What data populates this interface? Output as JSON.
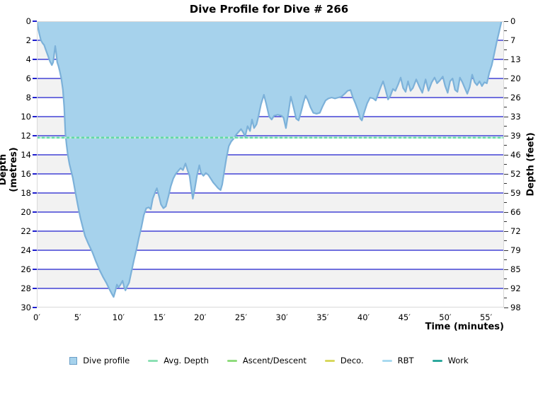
{
  "chart_data": {
    "type": "area",
    "title": "Dive Profile for Dive # 266",
    "xlabel": "Time (minutes)",
    "ylabel_left": "Depth (metres)",
    "ylabel_right": "Depth (feet)",
    "xlim": [
      0,
      57.2
    ],
    "ylim": [
      0,
      30
    ],
    "grid": true,
    "x_ticks": {
      "values": [
        0,
        5,
        10,
        15,
        20,
        25,
        30,
        35,
        40,
        45,
        50,
        55
      ],
      "labels": [
        "0′",
        "5′",
        "10′",
        "15′",
        "20′",
        "25′",
        "30′",
        "35′",
        "40′",
        "45′",
        "50′",
        "55′"
      ]
    },
    "y_ticks_metres": [
      0,
      2,
      4,
      6,
      8,
      10,
      12,
      14,
      16,
      18,
      20,
      22,
      24,
      26,
      28,
      30
    ],
    "y_ticks_feet_labels": [
      "0",
      "7",
      "13",
      "20",
      "26",
      "33",
      "39",
      "46",
      "52",
      "59",
      "66",
      "72",
      "79",
      "85",
      "92",
      "98"
    ],
    "avg_depth_m": 12.2,
    "max_depth_m": 28.9,
    "series": [
      {
        "name": "Dive profile",
        "points": [
          [
            0,
            0
          ],
          [
            0.15,
            0.7
          ],
          [
            0.3,
            1.3
          ],
          [
            0.5,
            2.0
          ],
          [
            0.7,
            2.3
          ],
          [
            0.9,
            2.5
          ],
          [
            1.1,
            3.0
          ],
          [
            1.4,
            3.7
          ],
          [
            1.6,
            4.2
          ],
          [
            1.85,
            4.6
          ],
          [
            2.0,
            4.3
          ],
          [
            2.15,
            3.3
          ],
          [
            2.25,
            2.6
          ],
          [
            2.4,
            3.5
          ],
          [
            2.5,
            4.3
          ],
          [
            2.65,
            4.7
          ],
          [
            2.8,
            5.2
          ],
          [
            3.0,
            6.0
          ],
          [
            3.2,
            7.2
          ],
          [
            3.35,
            9.0
          ],
          [
            3.5,
            11.8
          ],
          [
            3.65,
            13.0
          ],
          [
            3.8,
            14.0
          ],
          [
            4.0,
            15.0
          ],
          [
            4.2,
            15.7
          ],
          [
            4.4,
            16.4
          ],
          [
            4.7,
            17.8
          ],
          [
            5.0,
            19.2
          ],
          [
            5.3,
            20.5
          ],
          [
            5.6,
            21.5
          ],
          [
            5.9,
            22.5
          ],
          [
            6.3,
            23.3
          ],
          [
            6.8,
            24.2
          ],
          [
            7.2,
            25.1
          ],
          [
            7.7,
            26.1
          ],
          [
            8.1,
            26.8
          ],
          [
            8.5,
            27.4
          ],
          [
            8.9,
            28.1
          ],
          [
            9.2,
            28.6
          ],
          [
            9.4,
            28.9
          ],
          [
            9.6,
            28.3
          ],
          [
            9.8,
            27.6
          ],
          [
            10.0,
            27.9
          ],
          [
            10.25,
            27.6
          ],
          [
            10.5,
            27.2
          ],
          [
            10.7,
            27.9
          ],
          [
            10.85,
            28.2
          ],
          [
            11.05,
            27.8
          ],
          [
            11.3,
            27.4
          ],
          [
            11.6,
            26.2
          ],
          [
            11.9,
            25.0
          ],
          [
            12.2,
            23.9
          ],
          [
            12.5,
            22.7
          ],
          [
            12.8,
            21.6
          ],
          [
            13.1,
            20.3
          ],
          [
            13.4,
            19.6
          ],
          [
            13.7,
            19.5
          ],
          [
            13.95,
            19.7
          ],
          [
            14.2,
            18.6
          ],
          [
            14.5,
            17.9
          ],
          [
            14.7,
            17.5
          ],
          [
            14.95,
            18.3
          ],
          [
            15.2,
            19.2
          ],
          [
            15.5,
            19.6
          ],
          [
            15.8,
            19.4
          ],
          [
            16.1,
            18.4
          ],
          [
            16.4,
            17.3
          ],
          [
            16.7,
            16.5
          ],
          [
            17.0,
            16.0
          ],
          [
            17.3,
            15.7
          ],
          [
            17.6,
            15.4
          ],
          [
            17.9,
            15.6
          ],
          [
            18.2,
            14.9
          ],
          [
            18.45,
            15.6
          ],
          [
            18.7,
            16.2
          ],
          [
            18.9,
            17.5
          ],
          [
            19.1,
            18.6
          ],
          [
            19.35,
            17.5
          ],
          [
            19.6,
            16.2
          ],
          [
            19.9,
            15.1
          ],
          [
            20.1,
            15.9
          ],
          [
            20.4,
            16.2
          ],
          [
            20.7,
            15.9
          ],
          [
            21.0,
            16.1
          ],
          [
            21.3,
            16.5
          ],
          [
            21.6,
            16.9
          ],
          [
            21.9,
            17.2
          ],
          [
            22.2,
            17.5
          ],
          [
            22.5,
            17.7
          ],
          [
            22.7,
            17.1
          ],
          [
            22.9,
            16.0
          ],
          [
            23.2,
            14.4
          ],
          [
            23.5,
            13.1
          ],
          [
            23.8,
            12.6
          ],
          [
            24.1,
            12.3
          ],
          [
            24.4,
            11.9
          ],
          [
            24.7,
            11.6
          ],
          [
            25.0,
            11.3
          ],
          [
            25.3,
            11.7
          ],
          [
            25.5,
            12.1
          ],
          [
            25.8,
            11.0
          ],
          [
            26.1,
            11.5
          ],
          [
            26.35,
            10.3
          ],
          [
            26.6,
            11.2
          ],
          [
            26.9,
            10.8
          ],
          [
            27.15,
            9.9
          ],
          [
            27.45,
            8.7
          ],
          [
            27.8,
            7.7
          ],
          [
            28.1,
            8.7
          ],
          [
            28.45,
            10.0
          ],
          [
            28.75,
            10.3
          ],
          [
            29.05,
            9.9
          ],
          [
            29.5,
            9.8
          ],
          [
            29.95,
            9.9
          ],
          [
            30.2,
            10.1
          ],
          [
            30.5,
            11.2
          ],
          [
            30.8,
            9.6
          ],
          [
            31.1,
            7.9
          ],
          [
            31.45,
            9.1
          ],
          [
            31.75,
            10.2
          ],
          [
            32.05,
            10.4
          ],
          [
            32.35,
            9.5
          ],
          [
            32.65,
            8.5
          ],
          [
            32.9,
            7.8
          ],
          [
            33.2,
            8.3
          ],
          [
            33.5,
            9.0
          ],
          [
            33.85,
            9.6
          ],
          [
            34.25,
            9.7
          ],
          [
            34.65,
            9.6
          ],
          [
            35.0,
            8.9
          ],
          [
            35.35,
            8.3
          ],
          [
            35.7,
            8.1
          ],
          [
            36.1,
            8.0
          ],
          [
            36.5,
            8.1
          ],
          [
            36.9,
            8.0
          ],
          [
            37.3,
            7.9
          ],
          [
            37.7,
            7.6
          ],
          [
            38.05,
            7.3
          ],
          [
            38.4,
            7.2
          ],
          [
            38.7,
            8.0
          ],
          [
            39.0,
            8.6
          ],
          [
            39.3,
            9.3
          ],
          [
            39.6,
            10.2
          ],
          [
            39.8,
            10.4
          ],
          [
            40.1,
            9.5
          ],
          [
            40.45,
            8.6
          ],
          [
            40.8,
            8.0
          ],
          [
            41.2,
            8.1
          ],
          [
            41.5,
            8.3
          ],
          [
            41.8,
            7.6
          ],
          [
            42.1,
            6.9
          ],
          [
            42.4,
            6.3
          ],
          [
            42.7,
            7.2
          ],
          [
            43.0,
            8.2
          ],
          [
            43.3,
            7.8
          ],
          [
            43.6,
            7.1
          ],
          [
            43.9,
            7.3
          ],
          [
            44.25,
            6.6
          ],
          [
            44.55,
            5.9
          ],
          [
            44.85,
            7.0
          ],
          [
            45.15,
            7.4
          ],
          [
            45.45,
            6.3
          ],
          [
            45.75,
            7.3
          ],
          [
            46.05,
            7.0
          ],
          [
            46.45,
            6.1
          ],
          [
            46.85,
            6.9
          ],
          [
            47.2,
            7.5
          ],
          [
            47.6,
            6.1
          ],
          [
            47.95,
            7.3
          ],
          [
            48.35,
            6.4
          ],
          [
            48.7,
            5.9
          ],
          [
            49.0,
            6.5
          ],
          [
            49.35,
            6.2
          ],
          [
            49.7,
            5.8
          ],
          [
            50.0,
            6.8
          ],
          [
            50.3,
            7.5
          ],
          [
            50.6,
            6.3
          ],
          [
            50.9,
            6.0
          ],
          [
            51.2,
            7.2
          ],
          [
            51.5,
            7.4
          ],
          [
            51.8,
            5.9
          ],
          [
            52.1,
            6.4
          ],
          [
            52.4,
            7.0
          ],
          [
            52.7,
            7.6
          ],
          [
            53.0,
            6.9
          ],
          [
            53.3,
            5.6
          ],
          [
            53.6,
            6.4
          ],
          [
            53.9,
            6.7
          ],
          [
            54.2,
            6.3
          ],
          [
            54.5,
            6.8
          ],
          [
            54.8,
            6.4
          ],
          [
            55.1,
            6.5
          ],
          [
            55.4,
            5.4
          ],
          [
            55.7,
            4.6
          ],
          [
            56.0,
            3.4
          ],
          [
            56.3,
            2.2
          ],
          [
            56.6,
            1.1
          ],
          [
            56.9,
            0
          ]
        ]
      }
    ],
    "legend": [
      {
        "label": "Dive profile",
        "type": "square",
        "color": "#a6d2ec",
        "border": "#6b9fc7"
      },
      {
        "label": "Avg. Depth",
        "type": "line",
        "color": "#8ce0b4"
      },
      {
        "label": "Ascent/Descent",
        "type": "line",
        "color": "#8fdc7d"
      },
      {
        "label": "Deco.",
        "type": "line",
        "color": "#d8d85e"
      },
      {
        "label": "RBT",
        "type": "line",
        "color": "#a9daf0"
      },
      {
        "label": "Work",
        "type": "line",
        "color": "#2ea89d"
      }
    ],
    "colors": {
      "grid_blue": "#1f1fce",
      "band_gray": "#f2f2f2",
      "band_white": "#ffffff",
      "profile_fill": "#a6d2ec",
      "profile_stroke": "#7cb1d9",
      "avg_line": "#5fd9a2",
      "avg_line_light": "#bcedd6",
      "plot_border": "#d9d9d9",
      "tick_dark": "#333333"
    }
  }
}
